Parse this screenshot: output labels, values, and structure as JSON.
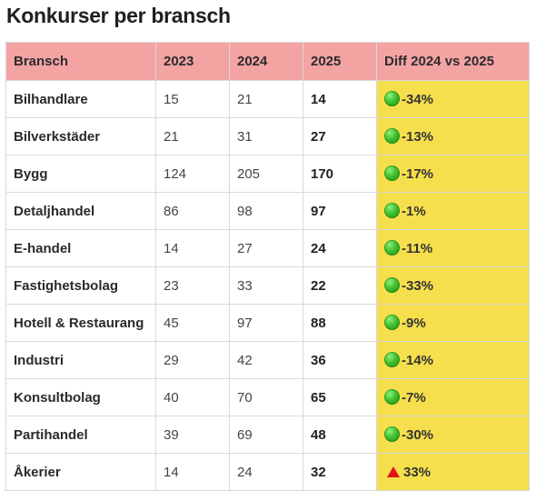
{
  "title": "Konkurser per bransch",
  "colors": {
    "header_bg": "#f4a3a3",
    "diff_bg": "#f6df4c",
    "decrease_marker": "#3fbf2c",
    "increase_marker": "#e0141a"
  },
  "chart_data": {
    "type": "table",
    "title": "Konkurser per bransch",
    "columns": [
      "Bransch",
      "2023",
      "2024",
      "2025",
      "Diff 2024 vs 2025"
    ],
    "rows": [
      {
        "bransch": "Bilhandlare",
        "y2023": "15",
        "y2024": "21",
        "y2025": "14",
        "diff": "-34%",
        "marker": "green-circle-icon"
      },
      {
        "bransch": "Bilverkstäder",
        "y2023": "21",
        "y2024": "31",
        "y2025": "27",
        "diff": "-13%",
        "marker": "green-circle-icon"
      },
      {
        "bransch": "Bygg",
        "y2023": "124",
        "y2024": "205",
        "y2025": "170",
        "diff": "-17%",
        "marker": "green-circle-icon"
      },
      {
        "bransch": "Detaljhandel",
        "y2023": "86",
        "y2024": "98",
        "y2025": "97",
        "diff": "-1%",
        "marker": "green-circle-icon"
      },
      {
        "bransch": "E-handel",
        "y2023": "14",
        "y2024": "27",
        "y2025": "24",
        "diff": "-11%",
        "marker": "green-circle-icon"
      },
      {
        "bransch": "Fastighetsbolag",
        "y2023": "23",
        "y2024": "33",
        "y2025": "22",
        "diff": "-33%",
        "marker": "green-circle-icon"
      },
      {
        "bransch": "Hotell & Restaurang",
        "y2023": "45",
        "y2024": "97",
        "y2025": "88",
        "diff": "-9%",
        "marker": "green-circle-icon"
      },
      {
        "bransch": "Industri",
        "y2023": "29",
        "y2024": "42",
        "y2025": "36",
        "diff": "-14%",
        "marker": "green-circle-icon"
      },
      {
        "bransch": "Konsultbolag",
        "y2023": "40",
        "y2024": "70",
        "y2025": "65",
        "diff": "-7%",
        "marker": "green-circle-icon"
      },
      {
        "bransch": "Partihandel",
        "y2023": "39",
        "y2024": "69",
        "y2025": "48",
        "diff": "-30%",
        "marker": "green-circle-icon"
      },
      {
        "bransch": "Åkerier",
        "y2023": "14",
        "y2024": "24",
        "y2025": "32",
        "diff": "33%",
        "marker": "red-triangle-up-icon"
      }
    ]
  }
}
